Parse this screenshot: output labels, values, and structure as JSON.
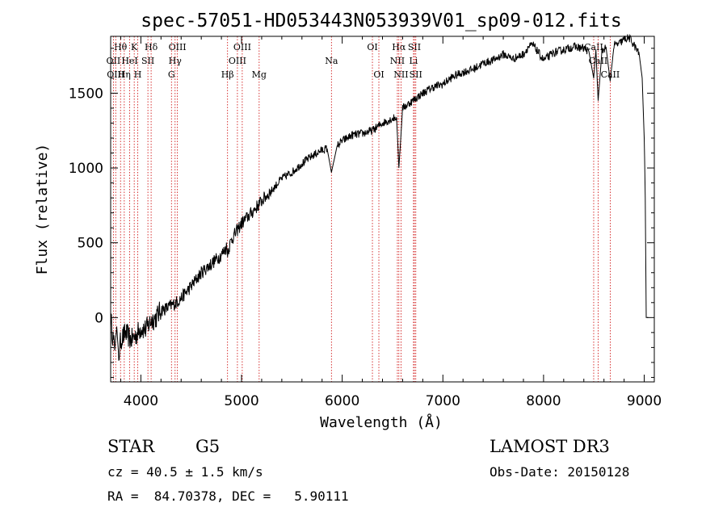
{
  "chart_data": {
    "type": "line",
    "title": "spec-57051-HD053443N053939V01_sp09-012.fits",
    "xlabel": "Wavelength (Å)",
    "ylabel": "Flux (relative)",
    "xlim": [
      3700,
      9100
    ],
    "ylim": [
      -430,
      1880
    ],
    "xticks": [
      4000,
      5000,
      6000,
      7000,
      8000,
      9000
    ],
    "yticks": [
      0,
      500,
      1000,
      1500
    ],
    "series": [
      {
        "name": "flux",
        "x": [
          3700,
          3720,
          3740,
          3760,
          3780,
          3800,
          3850,
          3900,
          3950,
          4000,
          4050,
          4100,
          4150,
          4200,
          4250,
          4300,
          4350,
          4400,
          4500,
          4600,
          4700,
          4800,
          4850,
          4861,
          4900,
          5000,
          5100,
          5200,
          5300,
          5400,
          5500,
          5600,
          5700,
          5800,
          5850,
          5893,
          5950,
          6000,
          6100,
          6200,
          6300,
          6400,
          6500,
          6540,
          6563,
          6600,
          6700,
          6800,
          6900,
          7000,
          7100,
          7200,
          7300,
          7400,
          7500,
          7600,
          7700,
          7800,
          7850,
          7900,
          8000,
          8100,
          8200,
          8300,
          8400,
          8450,
          8498,
          8520,
          8542,
          8580,
          8620,
          8662,
          8700,
          8750,
          8800,
          8850,
          8900,
          8950,
          8980,
          9000,
          9010,
          9020,
          9040
        ],
        "y": [
          0,
          -120,
          -220,
          -60,
          -260,
          -150,
          -100,
          -150,
          -120,
          -70,
          -80,
          -20,
          0,
          50,
          60,
          80,
          100,
          130,
          210,
          300,
          360,
          420,
          470,
          440,
          520,
          630,
          700,
          780,
          850,
          930,
          970,
          1030,
          1080,
          1120,
          1130,
          970,
          1150,
          1180,
          1220,
          1230,
          1250,
          1300,
          1330,
          1340,
          1000,
          1400,
          1450,
          1500,
          1540,
          1560,
          1610,
          1640,
          1660,
          1700,
          1720,
          1760,
          1730,
          1760,
          1810,
          1820,
          1720,
          1770,
          1790,
          1810,
          1800,
          1780,
          1600,
          1790,
          1450,
          1780,
          1810,
          1580,
          1820,
          1830,
          1860,
          1870,
          1820,
          1760,
          1600,
          1200,
          800,
          0,
          0
        ]
      }
    ],
    "lines": [
      {
        "label": "Hθ",
        "x": 3798,
        "row": 0
      },
      {
        "label": "K",
        "x": 3934,
        "row": 0
      },
      {
        "label": "Hδ",
        "x": 4102,
        "row": 0
      },
      {
        "label": "OIII",
        "x": 4363,
        "row": 0
      },
      {
        "label": "OIII",
        "x": 5007,
        "row": 0
      },
      {
        "label": "OI",
        "x": 6300,
        "row": 0
      },
      {
        "label": "Hα",
        "x": 6563,
        "row": 0
      },
      {
        "label": "SII",
        "x": 6717,
        "row": 0
      },
      {
        "label": "CaII",
        "x": 8498,
        "row": 0
      },
      {
        "label": "OII",
        "x": 3727,
        "row": 1
      },
      {
        "label": "HeI",
        "x": 3889,
        "row": 1
      },
      {
        "label": "SII",
        "x": 4070,
        "row": 1
      },
      {
        "label": "Hγ",
        "x": 4340,
        "row": 1
      },
      {
        "label": "OIII",
        "x": 4959,
        "row": 1
      },
      {
        "label": "Na",
        "x": 5893,
        "row": 1
      },
      {
        "label": "NII",
        "x": 6548,
        "row": 1
      },
      {
        "label": "Li",
        "x": 6708,
        "row": 1
      },
      {
        "label": "CaII",
        "x": 8542,
        "row": 1
      },
      {
        "label": "OIII",
        "x": 3750,
        "row": 2
      },
      {
        "label": "Hη",
        "x": 3835,
        "row": 2
      },
      {
        "label": "H",
        "x": 3969,
        "row": 2
      },
      {
        "label": "G",
        "x": 4304,
        "row": 2
      },
      {
        "label": "Hβ",
        "x": 4861,
        "row": 2
      },
      {
        "label": "Mg",
        "x": 5175,
        "row": 2
      },
      {
        "label": "OI",
        "x": 6364,
        "row": 2
      },
      {
        "label": "NII",
        "x": 6584,
        "row": 2
      },
      {
        "label": "SII",
        "x": 6731,
        "row": 2
      },
      {
        "label": "CaII",
        "x": 8662,
        "row": 2
      }
    ],
    "line_color": "#cc0000"
  },
  "info": {
    "class": "STAR",
    "subclass": "G5",
    "survey": "LAMOST DR3",
    "cz": "cz = 40.5 ± 1.5 km/s",
    "obs_date": "Obs-Date: 20150128",
    "radec": "RA =  84.70378, DEC =   5.90111"
  }
}
